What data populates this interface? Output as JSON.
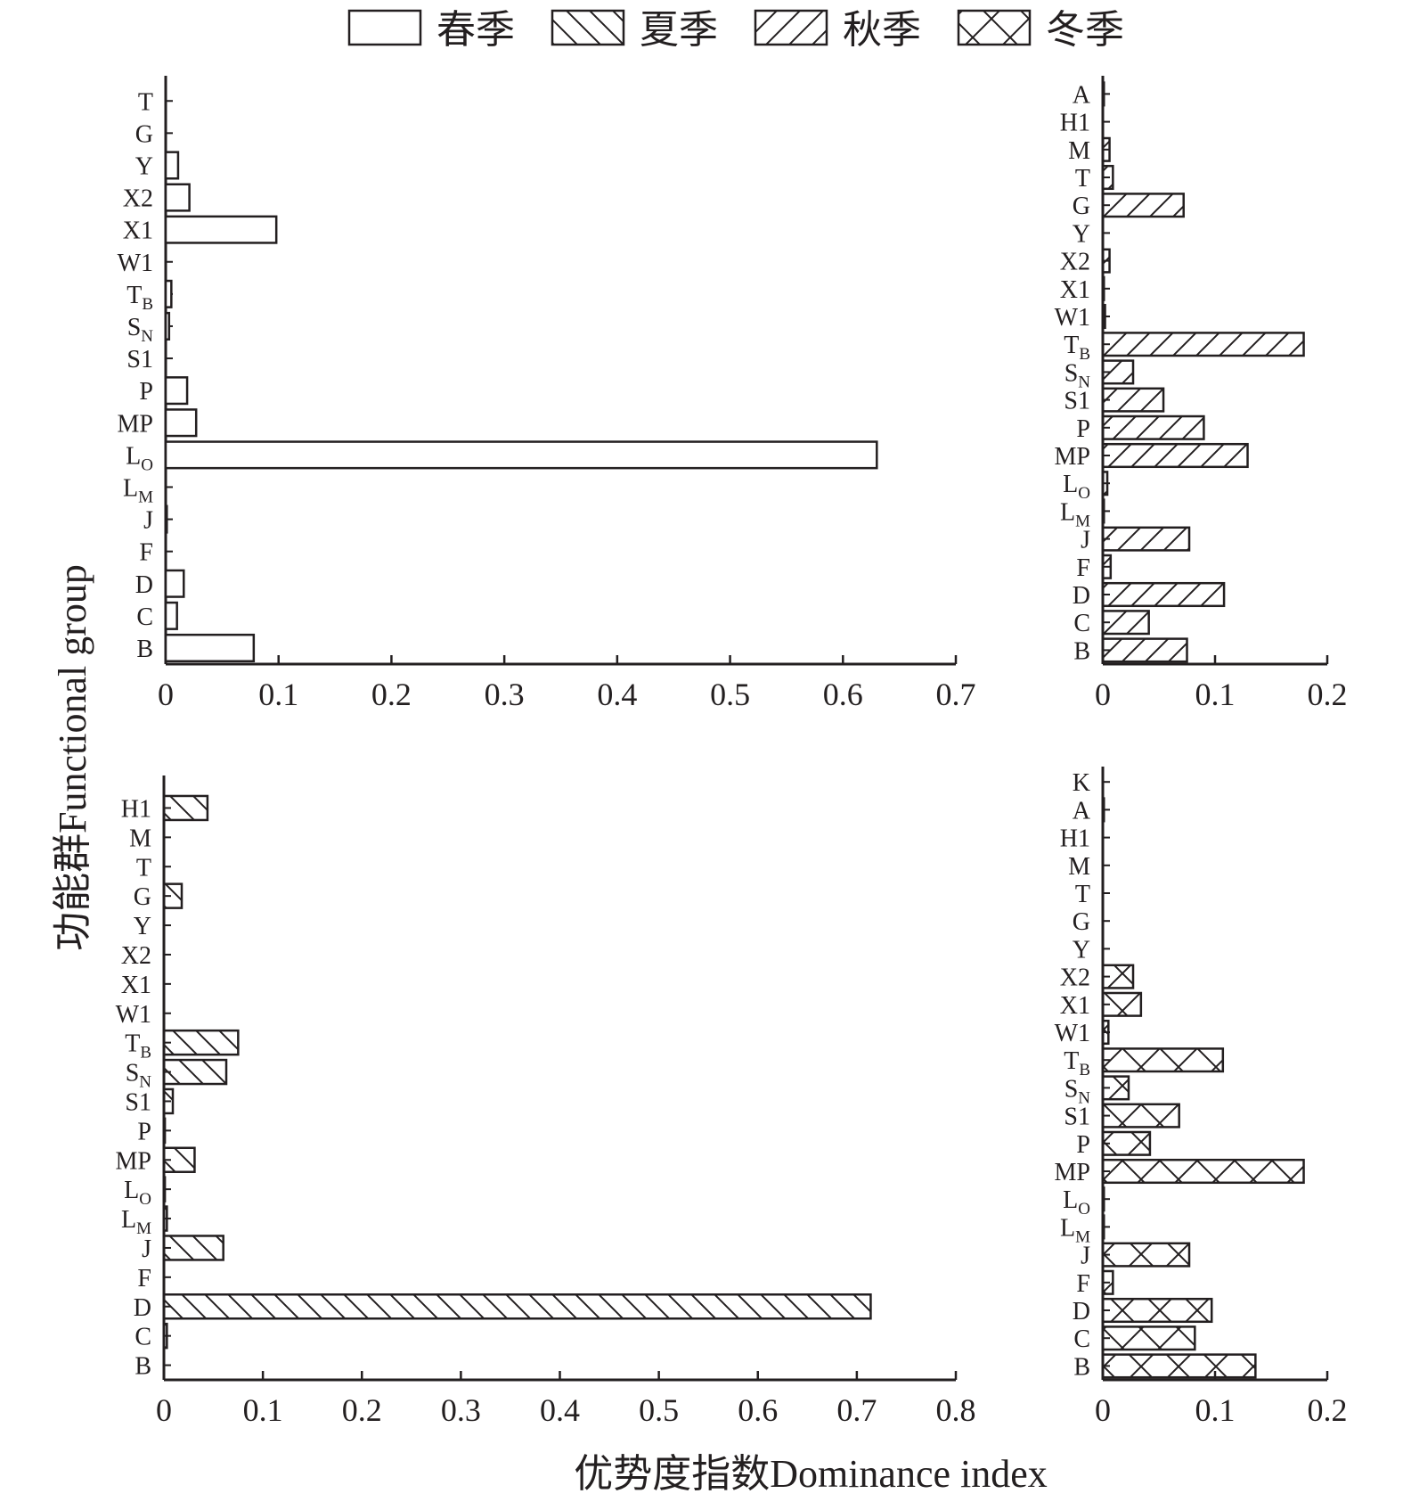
{
  "chart_data": {
    "type": "bar",
    "orientation": "horizontal",
    "xlabel": "优势度指数Dominance index",
    "ylabel": "功能群Functional group",
    "legend": {
      "placement": "top",
      "entries": [
        {
          "label": "春季",
          "pattern": "none"
        },
        {
          "label": "夏季",
          "pattern": "back-diagonal"
        },
        {
          "label": "秋季",
          "pattern": "diagonal"
        },
        {
          "label": "冬季",
          "pattern": "cross"
        }
      ]
    },
    "panels": [
      {
        "season": "春季",
        "pattern": "none",
        "xlim": [
          0,
          0.7
        ],
        "xticks": [
          "0",
          "0.1",
          "0.2",
          "0.3",
          "0.4",
          "0.5",
          "0.6",
          "0.7"
        ],
        "categories": [
          "T",
          "G",
          "Y",
          "X2",
          "X1",
          "W1",
          "TB",
          "SN",
          "S1",
          "P",
          "MP",
          "LO",
          "LM",
          "J",
          "F",
          "D",
          "C",
          "B"
        ],
        "values": [
          0,
          0,
          0.011,
          0.021,
          0.098,
          0,
          0.005,
          0.003,
          0,
          0.019,
          0.027,
          0.63,
          0,
          0.001,
          0,
          0.016,
          0.01,
          0.078
        ]
      },
      {
        "season": "秋季",
        "pattern": "diagonal",
        "xlim": [
          0,
          0.2
        ],
        "xticks": [
          "0",
          "0.1",
          "0.2"
        ],
        "categories": [
          "A",
          "H1",
          "M",
          "T",
          "G",
          "Y",
          "X2",
          "X1",
          "W1",
          "TB",
          "SN",
          "S1",
          "P",
          "MP",
          "LO",
          "LM",
          "J",
          "F",
          "D",
          "C",
          "B"
        ],
        "values": [
          0.001,
          0,
          0.006,
          0.009,
          0.072,
          0,
          0.006,
          0.001,
          0.002,
          0.179,
          0.027,
          0.054,
          0.09,
          0.129,
          0.004,
          0.001,
          0.077,
          0.007,
          0.108,
          0.041,
          0.075
        ]
      },
      {
        "season": "夏季",
        "pattern": "back-diagonal",
        "xlim": [
          0,
          0.8
        ],
        "xticks": [
          "0",
          "0.1",
          "0.2",
          "0.3",
          "0.4",
          "0.5",
          "0.6",
          "0.7",
          "0.8"
        ],
        "categories": [
          "H1",
          "M",
          "T",
          "G",
          "Y",
          "X2",
          "X1",
          "W1",
          "TB",
          "SN",
          "S1",
          "P",
          "MP",
          "LO",
          "LM",
          "J",
          "F",
          "D",
          "C",
          "B"
        ],
        "values": [
          0.044,
          0,
          0,
          0.018,
          0,
          0,
          0,
          0,
          0.075,
          0.063,
          0.009,
          0.001,
          0.031,
          0.001,
          0.003,
          0.06,
          0,
          0.714,
          0.003,
          0
        ]
      },
      {
        "season": "冬季",
        "pattern": "cross",
        "xlim": [
          0,
          0.2
        ],
        "xticks": [
          "0",
          "0.1",
          "0.2"
        ],
        "categories": [
          "K",
          "A",
          "H1",
          "M",
          "T",
          "G",
          "Y",
          "X2",
          "X1",
          "W1",
          "TB",
          "SN",
          "S1",
          "P",
          "MP",
          "LO",
          "LM",
          "J",
          "F",
          "D",
          "C",
          "B"
        ],
        "values": [
          0,
          0.001,
          0,
          0,
          0,
          0,
          0,
          0.027,
          0.034,
          0.005,
          0.107,
          0.023,
          0.068,
          0.042,
          0.179,
          0.001,
          0.001,
          0.077,
          0.009,
          0.097,
          0.082,
          0.136
        ]
      }
    ]
  }
}
